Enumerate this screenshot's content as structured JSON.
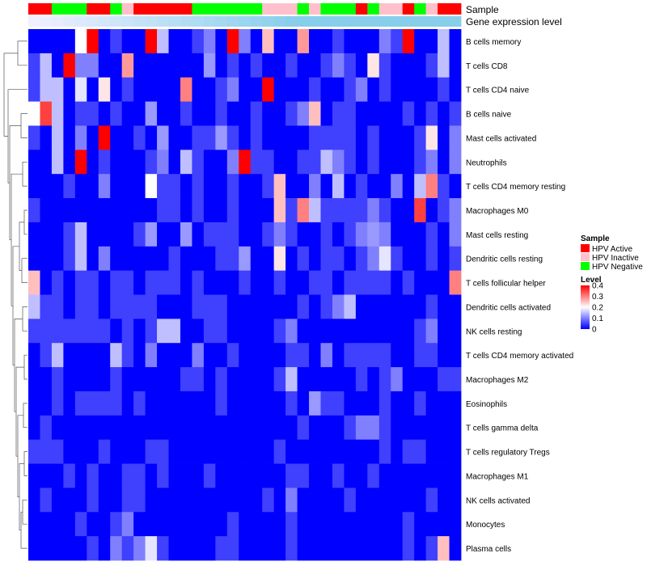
{
  "chart_data": {
    "type": "heatmap",
    "annotation_tracks": [
      {
        "name": "Sample",
        "values": [
          "HPV Active",
          "HPV Active",
          "HPV Negative",
          "HPV Negative",
          "HPV Negative",
          "HPV Active",
          "HPV Active",
          "HPV Negative",
          "HPV Inactive",
          "HPV Active",
          "HPV Active",
          "HPV Active",
          "HPV Active",
          "HPV Active",
          "HPV Negative",
          "HPV Negative",
          "HPV Negative",
          "HPV Negative",
          "HPV Negative",
          "HPV Negative",
          "HPV Inactive",
          "HPV Inactive",
          "HPV Inactive",
          "HPV Negative",
          "HPV Inactive",
          "HPV Negative",
          "HPV Negative",
          "HPV Negative",
          "HPV Active",
          "HPV Negative",
          "HPV Inactive",
          "HPV Inactive",
          "HPV Active",
          "HPV Negative",
          "HPV Inactive",
          "HPV Active",
          "HPV Active"
        ]
      },
      {
        "name": "Gene expression level",
        "values": []
      }
    ],
    "rows": [
      "B cells memory",
      "T cells CD8",
      "T cells CD4 naive",
      "B cells naive",
      "Mast cells activated",
      "Neutrophils",
      "T cells CD4 memory resting",
      "Macrophages M0",
      "Mast cells resting",
      "Dendritic cells resting",
      "T cells follicular helper",
      "Dendritic cells activated",
      "NK cells resting",
      "T cells CD4 memory activated",
      "Macrophages M2",
      "Eosinophils",
      "T cells gamma delta",
      "T cells regulatory  Tregs",
      "Macrophages M1",
      "NK cells activated",
      "Monocytes",
      "Plasma cells"
    ],
    "values": [
      [
        0,
        0,
        0,
        0,
        0.2,
        0.4,
        0,
        0.05,
        0,
        0,
        0.4,
        0.15,
        0,
        0,
        0.05,
        0.1,
        0,
        0.4,
        0.1,
        0,
        0.25,
        0,
        0,
        0.28,
        0,
        0,
        0.05,
        0,
        0,
        0,
        0.1,
        0.05,
        0.4,
        0,
        0,
        0.15,
        0
      ],
      [
        0.05,
        0.15,
        0,
        0.4,
        0.1,
        0.1,
        0,
        0,
        0.28,
        0,
        0,
        0,
        0,
        0,
        0,
        0.12,
        0,
        0.05,
        0,
        0.05,
        0,
        0,
        0.05,
        0,
        0,
        0.05,
        0.1,
        0.05,
        0,
        0.22,
        0.05,
        0,
        0,
        0,
        0.05,
        0.15,
        0
      ],
      [
        0.05,
        0.15,
        0.15,
        0,
        0.18,
        0,
        0.22,
        0,
        0.05,
        0,
        0,
        0,
        0,
        0.3,
        0,
        0,
        0.05,
        0.1,
        0,
        0,
        0.4,
        0,
        0,
        0,
        0.05,
        0,
        0,
        0.05,
        0.1,
        0,
        0.05,
        0,
        0,
        0,
        0,
        0.05,
        0
      ],
      [
        0.2,
        0.35,
        0.15,
        0,
        0.05,
        0.05,
        0,
        0.05,
        0,
        0,
        0.12,
        0,
        0,
        0.05,
        0,
        0,
        0.05,
        0,
        0,
        0.05,
        0,
        0,
        0.05,
        0.1,
        0.25,
        0,
        0.05,
        0.05,
        0,
        0,
        0,
        0,
        0.05,
        0,
        0.05,
        0,
        0.05
      ],
      [
        0.05,
        0,
        0.15,
        0,
        0.1,
        0,
        0.4,
        0,
        0,
        0.05,
        0,
        0.12,
        0,
        0,
        0.05,
        0.05,
        0.12,
        0.05,
        0,
        0.05,
        0,
        0,
        0,
        0,
        0.05,
        0.05,
        0.05,
        0.05,
        0,
        0.05,
        0,
        0,
        0,
        0.05,
        0.22,
        0,
        0.1
      ],
      [
        0,
        0,
        0.15,
        0,
        0.4,
        0,
        0.05,
        0,
        0,
        0,
        0.05,
        0.1,
        0,
        0.15,
        0.05,
        0,
        0,
        0.1,
        0.4,
        0.05,
        0.05,
        0,
        0,
        0.05,
        0.05,
        0.15,
        0.1,
        0.05,
        0,
        0.05,
        0,
        0,
        0,
        0.05,
        0.1,
        0,
        0.1
      ],
      [
        0,
        0,
        0,
        0.05,
        0,
        0,
        0.1,
        0,
        0,
        0,
        0.2,
        0.05,
        0.05,
        0,
        0.05,
        0,
        0,
        0.05,
        0,
        0,
        0.05,
        0.25,
        0,
        0,
        0.1,
        0,
        0.15,
        0,
        0.05,
        0,
        0,
        0.1,
        0,
        0.15,
        0.3,
        0.05,
        0
      ],
      [
        0.05,
        0,
        0,
        0,
        0,
        0,
        0,
        0,
        0,
        0,
        0,
        0.05,
        0.05,
        0,
        0.05,
        0,
        0,
        0.05,
        0,
        0,
        0,
        0.25,
        0.05,
        0.3,
        0.15,
        0.05,
        0.05,
        0.05,
        0.05,
        0.1,
        0.05,
        0,
        0,
        0.35,
        0,
        0.05,
        0.1
      ],
      [
        0,
        0,
        0,
        0.05,
        0.15,
        0,
        0,
        0,
        0,
        0.05,
        0.12,
        0,
        0,
        0.12,
        0,
        0.05,
        0.05,
        0.05,
        0,
        0,
        0.05,
        0.1,
        0.05,
        0,
        0,
        0.05,
        0,
        0.05,
        0.1,
        0.12,
        0.1,
        0,
        0,
        0,
        0.05,
        0,
        0.1
      ],
      [
        0,
        0,
        0,
        0.05,
        0.15,
        0,
        0.1,
        0,
        0,
        0,
        0,
        0,
        0.05,
        0,
        0,
        0,
        0.05,
        0.05,
        0.12,
        0,
        0,
        0.22,
        0,
        0.05,
        0,
        0.05,
        0.05,
        0,
        0.05,
        0.1,
        0.18,
        0.05,
        0,
        0,
        0.05,
        0,
        0.05
      ],
      [
        0.25,
        0,
        0.05,
        0,
        0.05,
        0.05,
        0,
        0.05,
        0.05,
        0,
        0.05,
        0.05,
        0.05,
        0,
        0.05,
        0,
        0,
        0,
        0.05,
        0,
        0,
        0.05,
        0,
        0,
        0.05,
        0.05,
        0,
        0.05,
        0.05,
        0.05,
        0.05,
        0,
        0.05,
        0,
        0,
        0,
        0.3
      ],
      [
        0.15,
        0.05,
        0.05,
        0,
        0.05,
        0.05,
        0,
        0.05,
        0.05,
        0.05,
        0.05,
        0,
        0,
        0,
        0.05,
        0.05,
        0.05,
        0,
        0,
        0,
        0,
        0,
        0,
        0.05,
        0,
        0.05,
        0.1,
        0.15,
        0,
        0,
        0,
        0,
        0,
        0,
        0.05,
        0,
        0
      ],
      [
        0.05,
        0.05,
        0.05,
        0.05,
        0.05,
        0.05,
        0.05,
        0,
        0.05,
        0,
        0.05,
        0.15,
        0.15,
        0,
        0,
        0.05,
        0.05,
        0,
        0,
        0,
        0,
        0.05,
        0.1,
        0,
        0,
        0,
        0,
        0,
        0,
        0,
        0,
        0,
        0,
        0.05,
        0.1,
        0,
        0
      ],
      [
        0,
        0.05,
        0.15,
        0,
        0,
        0,
        0,
        0.15,
        0.05,
        0,
        0.1,
        0,
        0,
        0,
        0.1,
        0,
        0,
        0.05,
        0,
        0,
        0,
        0,
        0.05,
        0.05,
        0,
        0.1,
        0,
        0.05,
        0.05,
        0.05,
        0.05,
        0,
        0,
        0.05,
        0.05,
        0,
        0
      ],
      [
        0,
        0,
        0.05,
        0,
        0,
        0,
        0,
        0.05,
        0,
        0,
        0,
        0,
        0,
        0.05,
        0.05,
        0,
        0.05,
        0,
        0,
        0,
        0,
        0.05,
        0.15,
        0,
        0,
        0,
        0,
        0,
        0.05,
        0,
        0.05,
        0.1,
        0,
        0,
        0,
        0.05,
        0.05
      ],
      [
        0,
        0,
        0.05,
        0,
        0.05,
        0.05,
        0.05,
        0.05,
        0,
        0.05,
        0,
        0,
        0,
        0,
        0,
        0,
        0.05,
        0,
        0,
        0,
        0,
        0,
        0.05,
        0,
        0.12,
        0.05,
        0.05,
        0,
        0,
        0,
        0.05,
        0,
        0,
        0.05,
        0,
        0,
        0
      ],
      [
        0,
        0.05,
        0,
        0,
        0,
        0,
        0,
        0,
        0,
        0,
        0,
        0,
        0,
        0,
        0,
        0,
        0,
        0,
        0,
        0,
        0,
        0,
        0,
        0.05,
        0,
        0,
        0,
        0.05,
        0.1,
        0.1,
        0.05,
        0,
        0,
        0,
        0,
        0,
        0
      ],
      [
        0.05,
        0.05,
        0.05,
        0,
        0,
        0,
        0.05,
        0,
        0,
        0,
        0.05,
        0.05,
        0,
        0,
        0,
        0,
        0,
        0,
        0,
        0,
        0,
        0.05,
        0,
        0,
        0,
        0,
        0,
        0,
        0,
        0,
        0.05,
        0,
        0.05,
        0.05,
        0,
        0,
        0
      ],
      [
        0,
        0,
        0,
        0.05,
        0,
        0.05,
        0,
        0,
        0.05,
        0.05,
        0,
        0.05,
        0,
        0,
        0,
        0.05,
        0,
        0,
        0,
        0,
        0,
        0,
        0.05,
        0.05,
        0,
        0,
        0.05,
        0,
        0,
        0.05,
        0,
        0,
        0,
        0,
        0,
        0,
        0
      ],
      [
        0,
        0.05,
        0,
        0,
        0,
        0.05,
        0,
        0,
        0.05,
        0.05,
        0,
        0,
        0,
        0,
        0,
        0,
        0,
        0,
        0,
        0,
        0.05,
        0,
        0.1,
        0,
        0,
        0,
        0,
        0.05,
        0,
        0,
        0,
        0,
        0,
        0,
        0.05,
        0,
        0
      ],
      [
        0,
        0,
        0,
        0,
        0.05,
        0,
        0,
        0.05,
        0.1,
        0,
        0,
        0,
        0,
        0,
        0,
        0,
        0,
        0.05,
        0,
        0,
        0,
        0,
        0.05,
        0,
        0,
        0,
        0,
        0,
        0,
        0,
        0,
        0,
        0.05,
        0,
        0,
        0,
        0
      ],
      [
        0,
        0,
        0,
        0,
        0,
        0.05,
        0,
        0.1,
        0.05,
        0.1,
        0.18,
        0.05,
        0,
        0,
        0,
        0,
        0.05,
        0.05,
        0,
        0,
        0,
        0,
        0.05,
        0,
        0,
        0,
        0,
        0,
        0,
        0,
        0,
        0,
        0.05,
        0,
        0.05,
        0.25,
        0
      ]
    ],
    "legend": {
      "sample_title": "Sample",
      "sample_items": [
        {
          "label": "HPV Active",
          "color": "#ff0000"
        },
        {
          "label": "HPV Inactive",
          "color": "#ffc0cb"
        },
        {
          "label": "HPV Negative",
          "color": "#00ff00"
        }
      ],
      "level_title": "Level",
      "level_ticks": [
        "0.4",
        "0.3",
        "0.2",
        "0.1",
        "0"
      ],
      "range": [
        0,
        0.4
      ]
    },
    "colors": {
      "low": "#0000ff",
      "mid": "#ffffff",
      "high": "#ff0000",
      "gene_expression_track": "#87ceeb"
    }
  }
}
